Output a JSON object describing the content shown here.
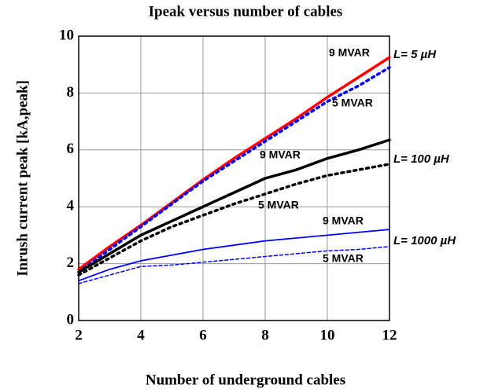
{
  "chart_data": {
    "type": "line",
    "title": "Ipeak versus number of cables",
    "x_label": "Number of underground cables",
    "y_label": "Inrush current peak [kA,peak]",
    "x": [
      2,
      3,
      4,
      5,
      6,
      7,
      8,
      9,
      10,
      11,
      12
    ],
    "xlim": [
      2,
      12
    ],
    "xticks": [
      2,
      4,
      6,
      8,
      10,
      12
    ],
    "ylim": [
      0,
      10
    ],
    "yticks": [
      0,
      2,
      4,
      6,
      8,
      10
    ],
    "grid": true,
    "series": [
      {
        "color": "#ff0000",
        "dash": "solid",
        "values": [
          1.8,
          2.6,
          3.35,
          4.15,
          4.95,
          5.7,
          6.4,
          7.1,
          7.85,
          8.55,
          9.25
        ]
      },
      {
        "color": "#0000ff",
        "dash": "dotted",
        "values": [
          1.7,
          2.5,
          3.3,
          4.1,
          4.9,
          5.6,
          6.3,
          7.0,
          7.7,
          8.25,
          8.9
        ]
      },
      {
        "color": "#000000",
        "dash": "solid",
        "values": [
          1.7,
          2.35,
          3.0,
          3.5,
          4.0,
          4.5,
          5.0,
          5.3,
          5.7,
          6.0,
          6.35
        ]
      },
      {
        "color": "#000000",
        "dash": "dotted",
        "values": [
          1.6,
          2.2,
          2.8,
          3.3,
          3.7,
          4.1,
          4.45,
          4.8,
          5.1,
          5.3,
          5.5
        ]
      },
      {
        "color": "#0000ff",
        "dash": "thin",
        "values": [
          1.4,
          1.8,
          2.1,
          2.3,
          2.5,
          2.65,
          2.8,
          2.9,
          3.0,
          3.1,
          3.2
        ]
      },
      {
        "color": "#0000ff",
        "dash": "thindash",
        "values": [
          1.3,
          1.6,
          1.9,
          1.95,
          2.05,
          2.15,
          2.25,
          2.35,
          2.45,
          2.5,
          2.6
        ]
      }
    ],
    "annotations": [
      "9 MVAR",
      "L= 5 µH",
      "5 MVAR",
      "9 MVAR",
      "L= 100 µH",
      "5 MVAR",
      "9 MVAR",
      "L= 1000 µH",
      "5 MVAR"
    ]
  }
}
